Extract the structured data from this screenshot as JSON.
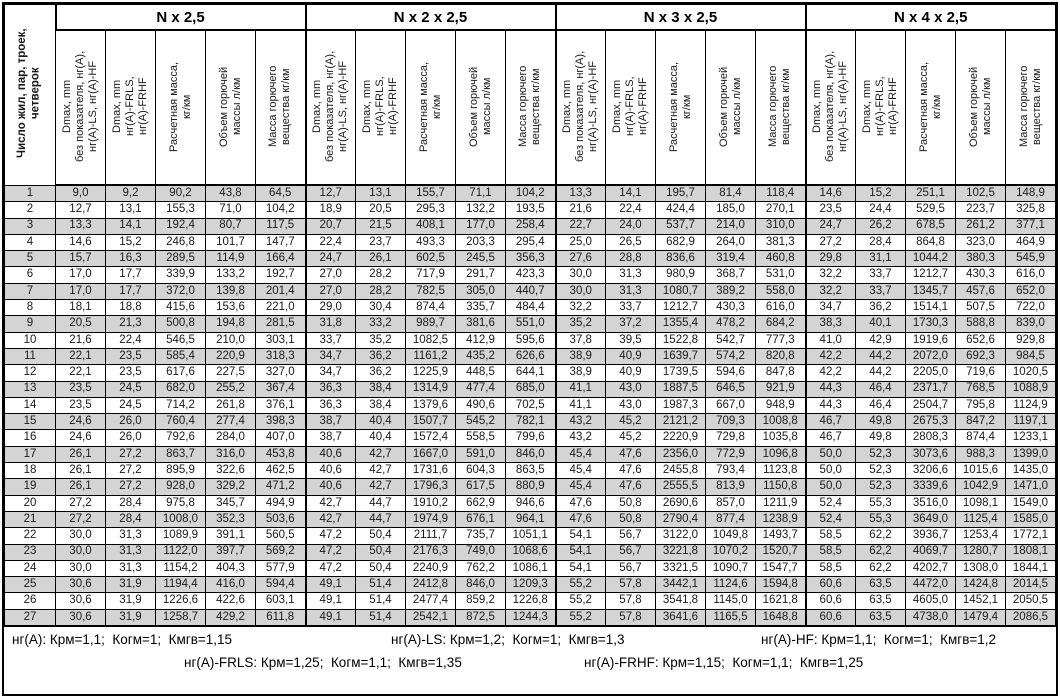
{
  "table": {
    "corner_header": [
      "Число жил, пар, троек,",
      "четверок"
    ],
    "groups": [
      {
        "title": "N x 2,5"
      },
      {
        "title": "N x 2 x 2,5"
      },
      {
        "title": "N x 3 x 2,5"
      },
      {
        "title": "N x 4 x 2,5"
      }
    ],
    "sub_headers": [
      [
        "Dmax, mm",
        "без показателя, нг(А),",
        "нг(А)-LS, нг(А)-HF"
      ],
      [
        "Dmax, mm",
        "нг(А)-FRLS,",
        "нг(А)-FRHF"
      ],
      [
        "Расчетная масса,",
        "кг/км"
      ],
      [
        "Объем горючей",
        "массы л/км"
      ],
      [
        "Масса горючего",
        "вещества кг/км"
      ]
    ],
    "rows": [
      [
        "1",
        "9,0",
        "9,2",
        "90,2",
        "43,8",
        "64,5",
        "12,7",
        "13,1",
        "155,7",
        "71,1",
        "104,2",
        "13,3",
        "14,1",
        "195,7",
        "81,4",
        "118,4",
        "14,6",
        "15,2",
        "251,1",
        "102,5",
        "148,9"
      ],
      [
        "2",
        "12,7",
        "13,1",
        "155,3",
        "71,0",
        "104,2",
        "18,9",
        "20,5",
        "295,3",
        "132,2",
        "193,5",
        "21,6",
        "22,4",
        "424,4",
        "185,0",
        "270,1",
        "23,5",
        "24,4",
        "529,5",
        "223,7",
        "325,8"
      ],
      [
        "3",
        "13,3",
        "14,1",
        "192,4",
        "80,7",
        "117,5",
        "20,7",
        "21,5",
        "408,1",
        "177,0",
        "258,4",
        "22,7",
        "24,0",
        "537,7",
        "214,0",
        "310,0",
        "24,7",
        "26,2",
        "678,5",
        "261,2",
        "377,1"
      ],
      [
        "4",
        "14,6",
        "15,2",
        "246,8",
        "101,7",
        "147,7",
        "22,4",
        "23,7",
        "493,3",
        "203,3",
        "295,4",
        "25,0",
        "26,5",
        "682,9",
        "264,0",
        "381,3",
        "27,2",
        "28,4",
        "864,8",
        "323,0",
        "464,9"
      ],
      [
        "5",
        "15,7",
        "16,3",
        "289,5",
        "114,9",
        "166,4",
        "24,7",
        "26,1",
        "602,5",
        "245,5",
        "356,3",
        "27,6",
        "28,8",
        "836,6",
        "319,4",
        "460,8",
        "29,8",
        "31,1",
        "1044,2",
        "380,3",
        "545,9"
      ],
      [
        "6",
        "17,0",
        "17,7",
        "339,9",
        "133,2",
        "192,7",
        "27,0",
        "28,2",
        "717,9",
        "291,7",
        "423,3",
        "30,0",
        "31,3",
        "980,9",
        "368,7",
        "531,0",
        "32,2",
        "33,7",
        "1212,7",
        "430,3",
        "616,0"
      ],
      [
        "7",
        "17,0",
        "17,7",
        "372,0",
        "139,8",
        "201,4",
        "27,0",
        "28,2",
        "782,5",
        "305,0",
        "440,7",
        "30,0",
        "31,3",
        "1080,7",
        "389,2",
        "558,0",
        "32,2",
        "33,7",
        "1345,7",
        "457,6",
        "652,0"
      ],
      [
        "8",
        "18,1",
        "18,8",
        "415,6",
        "153,6",
        "221,0",
        "29,0",
        "30,4",
        "874,4",
        "335,7",
        "484,4",
        "32,2",
        "33,7",
        "1212,7",
        "430,3",
        "616,0",
        "34,7",
        "36,2",
        "1514,1",
        "507,5",
        "722,0"
      ],
      [
        "9",
        "20,5",
        "21,3",
        "500,8",
        "194,8",
        "281,5",
        "31,8",
        "33,2",
        "989,7",
        "381,6",
        "551,0",
        "35,2",
        "37,2",
        "1355,4",
        "478,2",
        "684,2",
        "38,3",
        "40,1",
        "1730,3",
        "588,8",
        "839,0"
      ],
      [
        "10",
        "21,6",
        "22,4",
        "546,5",
        "210,0",
        "303,1",
        "33,7",
        "35,2",
        "1082,5",
        "412,9",
        "595,6",
        "37,8",
        "39,5",
        "1522,8",
        "542,7",
        "777,3",
        "41,0",
        "42,9",
        "1919,6",
        "652,6",
        "929,8"
      ],
      [
        "11",
        "22,1",
        "23,5",
        "585,4",
        "220,9",
        "318,3",
        "34,7",
        "36,2",
        "1161,2",
        "435,2",
        "626,6",
        "38,9",
        "40,9",
        "1639,7",
        "574,2",
        "820,8",
        "42,2",
        "44,2",
        "2072,0",
        "692,3",
        "984,5"
      ],
      [
        "12",
        "22,1",
        "23,5",
        "617,6",
        "227,5",
        "327,0",
        "34,7",
        "36,2",
        "1225,9",
        "448,5",
        "644,1",
        "38,9",
        "40,9",
        "1739,5",
        "594,6",
        "847,8",
        "42,2",
        "44,2",
        "2205,0",
        "719,6",
        "1020,5"
      ],
      [
        "13",
        "23,5",
        "24,5",
        "682,0",
        "255,2",
        "367,4",
        "36,3",
        "38,4",
        "1314,9",
        "477,4",
        "685,0",
        "41,1",
        "43,0",
        "1887,5",
        "646,5",
        "921,9",
        "44,3",
        "46,4",
        "2371,7",
        "768,5",
        "1088,9"
      ],
      [
        "14",
        "23,5",
        "24,5",
        "714,2",
        "261,8",
        "376,1",
        "36,3",
        "38,4",
        "1379,6",
        "490,6",
        "702,5",
        "41,1",
        "43,0",
        "1987,3",
        "667,0",
        "948,9",
        "44,3",
        "46,4",
        "2504,7",
        "795,8",
        "1124,9"
      ],
      [
        "15",
        "24,6",
        "26,0",
        "760,4",
        "277,4",
        "398,3",
        "38,7",
        "40,4",
        "1507,7",
        "545,2",
        "782,1",
        "43,2",
        "45,2",
        "2121,2",
        "709,3",
        "1008,8",
        "46,7",
        "49,8",
        "2675,3",
        "847,2",
        "1197,1"
      ],
      [
        "16",
        "24,6",
        "26,0",
        "792,6",
        "284,0",
        "407,0",
        "38,7",
        "40,4",
        "1572,4",
        "558,5",
        "799,6",
        "43,2",
        "45,2",
        "2220,9",
        "729,8",
        "1035,8",
        "46,7",
        "49,8",
        "2808,3",
        "874,4",
        "1233,1"
      ],
      [
        "17",
        "26,1",
        "27,2",
        "863,7",
        "316,0",
        "453,8",
        "40,6",
        "42,7",
        "1667,0",
        "591,0",
        "846,0",
        "45,4",
        "47,6",
        "2356,0",
        "772,9",
        "1096,8",
        "50,0",
        "52,3",
        "3073,6",
        "988,3",
        "1399,0"
      ],
      [
        "18",
        "26,1",
        "27,2",
        "895,9",
        "322,6",
        "462,5",
        "40,6",
        "42,7",
        "1731,6",
        "604,3",
        "863,5",
        "45,4",
        "47,6",
        "2455,8",
        "793,4",
        "1123,8",
        "50,0",
        "52,3",
        "3206,6",
        "1015,6",
        "1435,0"
      ],
      [
        "19",
        "26,1",
        "27,2",
        "928,0",
        "329,2",
        "471,2",
        "40,6",
        "42,7",
        "1796,3",
        "617,5",
        "880,9",
        "45,4",
        "47,6",
        "2555,5",
        "813,9",
        "1150,8",
        "50,0",
        "52,3",
        "3339,6",
        "1042,9",
        "1471,0"
      ],
      [
        "20",
        "27,2",
        "28,4",
        "975,8",
        "345,7",
        "494,9",
        "42,7",
        "44,7",
        "1910,2",
        "662,9",
        "946,6",
        "47,6",
        "50,8",
        "2690,6",
        "857,0",
        "1211,9",
        "52,4",
        "55,3",
        "3516,0",
        "1098,1",
        "1549,0"
      ],
      [
        "21",
        "27,2",
        "28,4",
        "1008,0",
        "352,3",
        "503,6",
        "42,7",
        "44,7",
        "1974,9",
        "676,1",
        "964,1",
        "47,6",
        "50,8",
        "2790,4",
        "877,4",
        "1238,9",
        "52,4",
        "55,3",
        "3649,0",
        "1125,4",
        "1585,0"
      ],
      [
        "22",
        "30,0",
        "31,3",
        "1089,9",
        "391,1",
        "560,5",
        "47,2",
        "50,4",
        "2111,7",
        "735,7",
        "1051,1",
        "54,1",
        "56,7",
        "3122,0",
        "1049,8",
        "1493,7",
        "58,5",
        "62,2",
        "3936,7",
        "1253,4",
        "1772,1"
      ],
      [
        "23",
        "30,0",
        "31,3",
        "1122,0",
        "397,7",
        "569,2",
        "47,2",
        "50,4",
        "2176,3",
        "749,0",
        "1068,6",
        "54,1",
        "56,7",
        "3221,8",
        "1070,2",
        "1520,7",
        "58,5",
        "62,2",
        "4069,7",
        "1280,7",
        "1808,1"
      ],
      [
        "24",
        "30,0",
        "31,3",
        "1154,2",
        "404,3",
        "577,9",
        "47,2",
        "50,4",
        "2240,9",
        "762,2",
        "1086,1",
        "54,1",
        "56,7",
        "3321,5",
        "1090,7",
        "1547,7",
        "58,5",
        "62,2",
        "4202,7",
        "1308,0",
        "1844,1"
      ],
      [
        "25",
        "30,6",
        "31,9",
        "1194,4",
        "416,0",
        "594,4",
        "49,1",
        "51,4",
        "2412,8",
        "846,0",
        "1209,3",
        "55,2",
        "57,8",
        "3442,1",
        "1124,6",
        "1594,8",
        "60,6",
        "63,5",
        "4472,0",
        "1424,8",
        "2014,5"
      ],
      [
        "26",
        "30,6",
        "31,9",
        "1226,6",
        "422,6",
        "603,1",
        "49,1",
        "51,4",
        "2477,4",
        "859,2",
        "1226,8",
        "55,2",
        "57,8",
        "3541,8",
        "1145,0",
        "1621,8",
        "60,6",
        "63,5",
        "4605,0",
        "1452,1",
        "2050,5"
      ],
      [
        "27",
        "30,6",
        "31,9",
        "1258,7",
        "429,2",
        "611,8",
        "49,1",
        "51,4",
        "2542,1",
        "872,5",
        "1244,3",
        "55,2",
        "57,8",
        "3641,6",
        "1165,5",
        "1648,8",
        "60,6",
        "63,5",
        "4738,0",
        "1479,4",
        "2086,5"
      ]
    ]
  },
  "footer": {
    "line1": [
      "нг(А): Крм=1,1;  Когм=1;  Кмгв=1,15",
      "нг(А)-LS: Крм=1,2;  Когм=1;  Кмгв=1,3",
      "нг(А)-HF: Крм=1,1;  Когм=1;  Кмгв=1,2"
    ],
    "line2": [
      "нг(А)-FRLS: Крм=1,25;  Когм=1,1;  Кмгв=1,35",
      "нг(А)-FRHF: Крм=1,15;  Когм=1,1;  Кмгв=1,25"
    ]
  },
  "colors": {
    "row_stripe": "#d4d4d4",
    "border": "#000000",
    "background": "#ffffff"
  }
}
